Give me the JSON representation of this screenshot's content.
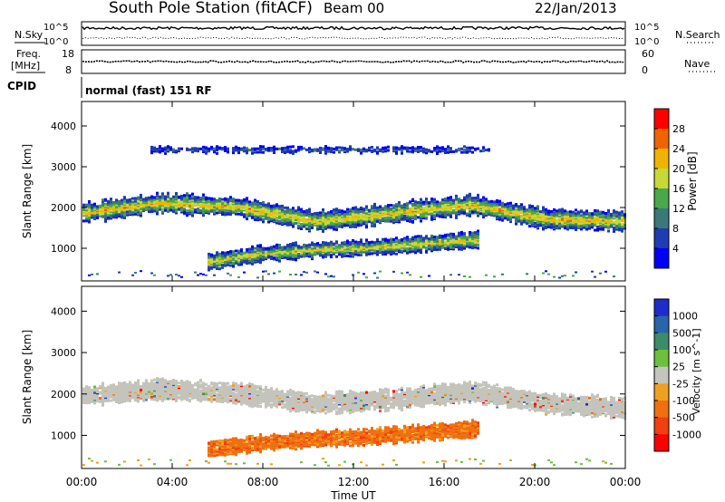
{
  "header": {
    "station": "South Pole Station (fitACF)",
    "beam": "Beam 00",
    "date": "22/Jan/2013"
  },
  "top_panels": {
    "nsky_label": "N.Sky",
    "nsky_hi": "10^5",
    "nsky_lo": "10^0",
    "nsearch_label": "N.Search",
    "freq_label_1": "Freq.",
    "freq_label_2": "[MHz]",
    "freq_ticks": [
      "18",
      "8"
    ],
    "nave_label": "Nave",
    "nave_ticks": [
      "60",
      "0"
    ],
    "cpid_label": "CPID",
    "cpid_text": "normal (fast) 151 RF"
  },
  "colors": {
    "power_scale": [
      "#0000ff",
      "#1e3cb4",
      "#3c7878",
      "#4aa84a",
      "#c8d838",
      "#f0b400",
      "#f06400",
      "#ff0000"
    ],
    "velocity_scale": [
      "#1e2ccc",
      "#2a64aa",
      "#3c8c6c",
      "#6cc03a",
      "#c4c4bc",
      "#f0a020",
      "#f07010",
      "#f04010",
      "#ff0000"
    ]
  },
  "chart_data": [
    {
      "type": "heatmap",
      "title": "Power",
      "xlabel": "Time UT",
      "ylabel": "Slant Range [km]",
      "x_ticks": [
        "00:00",
        "04:00",
        "08:00",
        "12:00",
        "16:00",
        "20:00",
        "00:00"
      ],
      "xlim_hours": [
        0,
        24
      ],
      "ylim_km": [
        200,
        4600
      ],
      "y_ticks": [
        1000,
        2000,
        3000,
        4000
      ],
      "colorbar_label": "Power [dB]",
      "colorbar_ticks": [
        4,
        8,
        12,
        16,
        20,
        24,
        28
      ],
      "colorbar_range": [
        0,
        32
      ],
      "bands": [
        {
          "hours": [
            0,
            24
          ],
          "center_km": [
            1900,
            2150,
            2050,
            1700,
            1900,
            2100,
            1750,
            1700
          ],
          "width_km": 450,
          "peak_db": 22
        },
        {
          "hours": [
            5.5,
            17.5
          ],
          "center_km": [
            700,
            900,
            1000,
            1050,
            1150,
            1250
          ],
          "width_km": 350,
          "peak_db": 20
        },
        {
          "hours": [
            3,
            18
          ],
          "center_km": [
            3450,
            3450
          ],
          "width_km": 150,
          "peak_db": 8
        }
      ]
    },
    {
      "type": "heatmap",
      "title": "Velocity",
      "xlabel": "Time UT",
      "ylabel": "Slant Range [km]",
      "x_ticks": [
        "00:00",
        "04:00",
        "08:00",
        "12:00",
        "16:00",
        "20:00",
        "00:00"
      ],
      "xlim_hours": [
        0,
        24
      ],
      "ylim_km": [
        200,
        4600
      ],
      "y_ticks": [
        1000,
        2000,
        3000,
        4000
      ],
      "colorbar_label": "Velocity [m s^-1]",
      "colorbar_ticks": [
        "1000",
        "500",
        "100",
        "25",
        "-25",
        "-100",
        "-500",
        "-1000"
      ],
      "bands": [
        {
          "hours": [
            0,
            24
          ],
          "center_km": [
            2000,
            2150,
            2050,
            1800,
            1900,
            2100,
            1800,
            1700
          ],
          "width_km": 450,
          "velocity_ms": 0
        },
        {
          "hours": [
            5.5,
            17.5
          ],
          "center_km": [
            700,
            850,
            950,
            1000,
            1100,
            1200
          ],
          "width_km": 350,
          "velocity_ms": -300
        }
      ]
    }
  ]
}
